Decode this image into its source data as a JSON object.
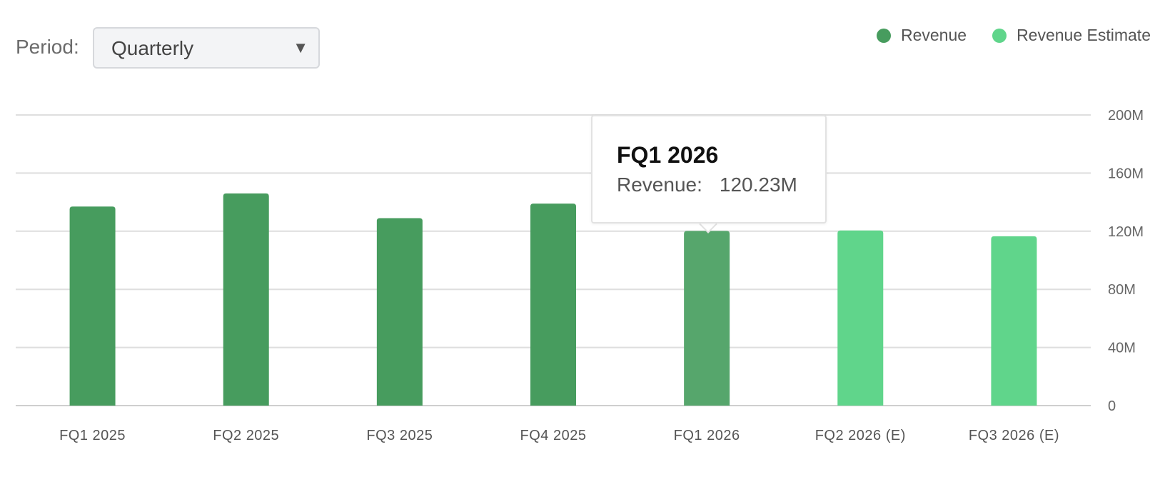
{
  "controls": {
    "period_label": "Period:",
    "period_value": "Quarterly",
    "chevron": "▼"
  },
  "legend": [
    {
      "label": "Revenue",
      "color": "#479c5e"
    },
    {
      "label": "Revenue Estimate",
      "color": "#60d58b"
    }
  ],
  "tooltip": {
    "title": "FQ1 2026",
    "label": "Revenue:",
    "value": "120.23M"
  },
  "chart_data": {
    "type": "bar",
    "title": "",
    "xlabel": "",
    "ylabel": "",
    "ylim": [
      0,
      200
    ],
    "y_ticks": [
      "0",
      "40M",
      "80M",
      "120M",
      "160M",
      "200M"
    ],
    "categories": [
      "FQ1 2025",
      "FQ2 2025",
      "FQ3 2025",
      "FQ4 2025",
      "FQ1 2026",
      "FQ2 2026 (E)",
      "FQ3 2026 (E)"
    ],
    "series": [
      {
        "name": "Revenue",
        "color": "#479c5e",
        "values": [
          137,
          146,
          129,
          139,
          120.23,
          null,
          null
        ]
      },
      {
        "name": "Revenue Estimate",
        "color": "#60d58b",
        "values": [
          null,
          null,
          null,
          null,
          null,
          120.5,
          116.5
        ]
      }
    ],
    "highlighted_category": "FQ1 2026",
    "highlight_color": "#56a66c",
    "grid": true,
    "legend_position": "top-right",
    "y_axis_side": "right"
  }
}
